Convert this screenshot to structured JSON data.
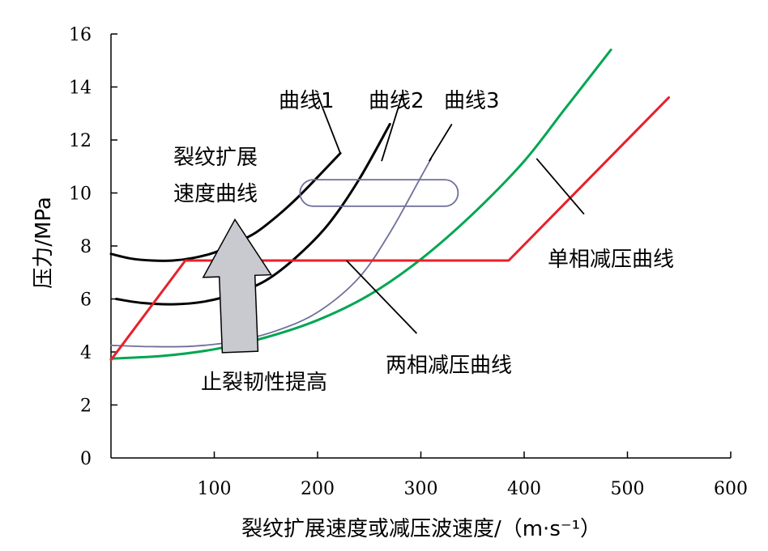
{
  "chart_data": {
    "type": "line",
    "xlabel": "裂纹扩展速度或减压波速度/（m·s⁻¹）",
    "ylabel": "压力/MPa",
    "xlim": [
      0,
      600
    ],
    "ylim": [
      0,
      16
    ],
    "x_ticks": [
      "100",
      "200",
      "300",
      "400",
      "500",
      "600"
    ],
    "y_ticks": [
      "0",
      "2",
      "4",
      "6",
      "8",
      "10",
      "12",
      "14",
      "16"
    ],
    "grid": false,
    "colors": {
      "black": "#000000",
      "purple": "#6f6f9a",
      "green": "#00a651",
      "red": "#e8202a",
      "arrow_fill": "#c9c9d0",
      "arrow_stroke": "#000000",
      "pill_stroke": "#6f6f9a"
    },
    "series": [
      {
        "key": "curve1",
        "color": "#000000",
        "width": 3,
        "x": [
          0,
          20,
          40,
          60,
          80,
          100,
          120,
          140,
          160,
          180,
          200,
          222
        ],
        "y": [
          7.7,
          7.52,
          7.45,
          7.45,
          7.55,
          7.75,
          8.1,
          8.5,
          9.1,
          9.8,
          10.6,
          11.5
        ]
      },
      {
        "key": "curve2",
        "color": "#000000",
        "width": 3,
        "x": [
          5,
          30,
          60,
          90,
          120,
          150,
          180,
          210,
          240,
          270
        ],
        "y": [
          6.0,
          5.85,
          5.8,
          5.9,
          6.2,
          6.7,
          7.6,
          8.8,
          10.5,
          12.6
        ]
      },
      {
        "key": "curve3",
        "color": "#6f6f9a",
        "width": 1.8,
        "x": [
          0,
          40,
          80,
          120,
          160,
          200,
          240,
          270,
          300,
          310
        ],
        "y": [
          4.25,
          4.2,
          4.22,
          4.4,
          4.8,
          5.5,
          6.8,
          8.5,
          10.6,
          11.3
        ]
      },
      {
        "key": "green",
        "color": "#00a651",
        "width": 3,
        "x": [
          0,
          50,
          100,
          150,
          200,
          250,
          300,
          350,
          400,
          440,
          484
        ],
        "y": [
          3.75,
          3.85,
          4.1,
          4.55,
          5.2,
          6.15,
          7.5,
          9.2,
          11.2,
          13.2,
          15.4
        ]
      },
      {
        "key": "red",
        "color": "#e8202a",
        "width": 3,
        "x": [
          0,
          72,
          385,
          540
        ],
        "y": [
          3.7,
          7.45,
          7.45,
          13.6
        ]
      }
    ],
    "annotations": {
      "curve1": "曲线1",
      "curve2": "曲线2",
      "curve3": "曲线3",
      "crack_line1": "裂纹扩展",
      "crack_line2": "速度曲线",
      "single_phase": "单相减压曲线",
      "two_phase": "两相减压曲线",
      "toughness": "止裂韧性提高"
    },
    "pointers": [
      {
        "name": "curve1-pointer",
        "from": [
          200,
          13.7
        ],
        "to": [
          222,
          11.5
        ]
      },
      {
        "name": "curve2-pointer",
        "from": [
          282,
          13.7
        ],
        "to": [
          262,
          11.2
        ]
      },
      {
        "name": "curve3-pointer",
        "from": [
          330,
          12.6
        ],
        "to": [
          308,
          11.2
        ]
      },
      {
        "name": "single-phase-pointer",
        "from": [
          458,
          9.2
        ],
        "to": [
          412,
          11.3
        ]
      },
      {
        "name": "two-phase-pointer",
        "from": [
          296,
          4.7
        ],
        "to": [
          228,
          7.45
        ]
      }
    ],
    "arrow": {
      "tail": [
        125,
        4.0
      ],
      "tip": [
        120,
        9.0
      ],
      "direction": "up"
    },
    "pill": {
      "x_from": 183,
      "x_to": 336,
      "y_center": 10.0,
      "height": 1.0
    }
  }
}
